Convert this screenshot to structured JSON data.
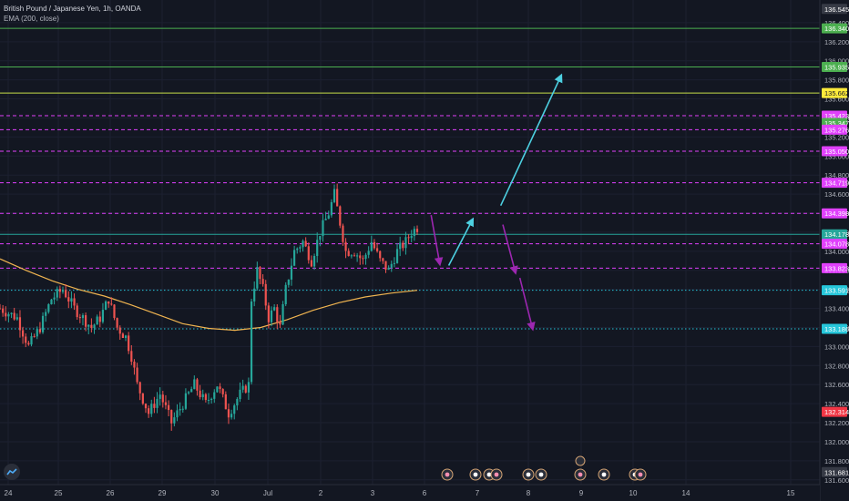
{
  "header": {
    "symbol_line": "British Pound / Japanese Yen, 1h, OANDA",
    "indicator_line": "EMA (200, close)"
  },
  "colors": {
    "background": "#131722",
    "up_candle": "#26a69a",
    "down_candle": "#ef5350",
    "ema": "#f0b450",
    "magenta_level": "#e040fb",
    "green_level": "#4caf50",
    "cyan_level": "#26c6da",
    "yellow_level": "#c8e04a",
    "arrow_cyan": "#4dd0e1",
    "arrow_purple": "#9c27b0"
  },
  "chart_data": {
    "type": "candlestick",
    "title": "",
    "instrument": "British Pound / Japanese Yen",
    "timeframe": "1h",
    "source": "OANDA",
    "indicator": "EMA (200, close)",
    "x_tick_labels": [
      "24",
      "25",
      "26",
      "29",
      "30",
      "Jul",
      "2",
      "3",
      "6",
      "7",
      "8",
      "9",
      "10",
      "14",
      "15"
    ],
    "y_tick_labels": [
      "136.400",
      "136.200",
      "136.000",
      "135.800",
      "135.600",
      "135.400",
      "135.200",
      "135.000",
      "134.800",
      "134.600",
      "134.400",
      "134.200",
      "134.000",
      "133.800",
      "133.600",
      "133.400",
      "133.200",
      "133.000",
      "132.800",
      "132.600",
      "132.400",
      "132.200",
      "132.000",
      "131.800",
      "131.600"
    ],
    "ylim": [
      131.55,
      136.6
    ],
    "current_price": 134.178,
    "horizontal_levels": [
      {
        "price": 136.34,
        "label": "136.340",
        "style": "solid",
        "color": "#4caf50",
        "badge": "#4caf50"
      },
      {
        "price": 135.935,
        "label": "135.935",
        "style": "solid",
        "color": "#4caf50",
        "badge": "#4caf50"
      },
      {
        "price": 135.662,
        "label": "135.662",
        "style": "solid",
        "color": "#c8e04a",
        "badge": "#ffeb3b"
      },
      {
        "price": 135.423,
        "label": "135.423",
        "style": "dashed",
        "color": "#e040fb",
        "badge": "#e040fb"
      },
      {
        "price": 135.347,
        "label": "135.347",
        "style": "none",
        "color": "#4caf50",
        "badge": "#4caf50"
      },
      {
        "price": 135.276,
        "label": "135.276",
        "style": "dashed",
        "color": "#e040fb",
        "badge": "#e040fb"
      },
      {
        "price": 135.05,
        "label": "135.050",
        "style": "dashed",
        "color": "#e040fb",
        "badge": "#e040fb"
      },
      {
        "price": 134.719,
        "label": "134.719",
        "style": "dashed",
        "color": "#e040fb",
        "badge": "#e040fb"
      },
      {
        "price": 134.398,
        "label": "134.398",
        "style": "dashed",
        "color": "#e040fb",
        "badge": "#e040fb"
      },
      {
        "price": 134.178,
        "label": "134.178",
        "style": "solid",
        "color": "#26a69a",
        "badge": "#26a69a"
      },
      {
        "price": 134.078,
        "label": "134.078",
        "style": "dashed",
        "color": "#e040fb",
        "badge": "#e040fb"
      },
      {
        "price": 133.823,
        "label": "133.823",
        "style": "dashed",
        "color": "#e040fb",
        "badge": "#e040fb"
      },
      {
        "price": 133.591,
        "label": "133.591",
        "style": "dotted",
        "color": "#26c6da",
        "badge": "#26c6da"
      },
      {
        "price": 133.186,
        "label": "133.186",
        "style": "dotted",
        "color": "#26c6da",
        "badge": "#26c6da"
      }
    ],
    "axis_badges": [
      {
        "price": 136.545,
        "label": "136.545",
        "color": "#363a45"
      },
      {
        "price": 132.314,
        "label": "132.314",
        "color": "#f23645"
      },
      {
        "price": 131.681,
        "label": "131.681",
        "color": "#363a45"
      }
    ],
    "close_path": [
      [
        0,
        133.4
      ],
      [
        6,
        133.3
      ],
      [
        10,
        133.0
      ],
      [
        14,
        133.2
      ],
      [
        18,
        133.5
      ],
      [
        22,
        133.6
      ],
      [
        26,
        133.4
      ],
      [
        29,
        133.3
      ],
      [
        32,
        133.2
      ],
      [
        35,
        133.3
      ],
      [
        38,
        133.5
      ],
      [
        41,
        133.2
      ],
      [
        44,
        133.1
      ],
      [
        46,
        132.9
      ],
      [
        48,
        132.6
      ],
      [
        52,
        132.3
      ],
      [
        56,
        132.5
      ],
      [
        60,
        132.2
      ],
      [
        64,
        132.4
      ],
      [
        68,
        132.6
      ],
      [
        72,
        132.4
      ],
      [
        76,
        132.6
      ],
      [
        80,
        132.3
      ],
      [
        84,
        132.5
      ],
      [
        87,
        132.6
      ],
      [
        88,
        133.5
      ],
      [
        90,
        133.8
      ],
      [
        92,
        133.6
      ],
      [
        94,
        133.3
      ],
      [
        96,
        133.4
      ],
      [
        98,
        133.2
      ],
      [
        100,
        133.6
      ],
      [
        103,
        134.0
      ],
      [
        106,
        134.1
      ],
      [
        109,
        133.9
      ],
      [
        112,
        134.2
      ],
      [
        115,
        134.4
      ],
      [
        117,
        134.6
      ],
      [
        119,
        134.3
      ],
      [
        121,
        134.0
      ],
      [
        124,
        134.0
      ],
      [
        127,
        133.9
      ],
      [
        130,
        134.1
      ],
      [
        133,
        133.9
      ],
      [
        136,
        133.8
      ],
      [
        139,
        134.0
      ],
      [
        142,
        134.1
      ],
      [
        144,
        134.2
      ],
      [
        146,
        134.25
      ]
    ],
    "ema_values": [
      133.92,
      133.8,
      133.69,
      133.6,
      133.53,
      133.44,
      133.34,
      133.24,
      133.19,
      133.17,
      133.2,
      133.28,
      133.38,
      133.46,
      133.52,
      133.56,
      133.59
    ],
    "arrows": [
      {
        "color": "cyan",
        "from": [
          "Jul 6 11:00",
          133.85
        ],
        "to": [
          "Jul 6 22:00",
          134.34
        ]
      },
      {
        "color": "cyan",
        "from": [
          "Jul 7 11:00",
          134.48
        ],
        "to": [
          "Jul 8 15:00",
          135.85
        ]
      },
      {
        "color": "purple",
        "from": [
          "Jul 6 03:00",
          134.38
        ],
        "to": [
          "Jul 6 07:00",
          133.86
        ]
      },
      {
        "color": "purple",
        "from": [
          "Jul 7 12:00",
          134.28
        ],
        "to": [
          "Jul 7 18:00",
          133.77
        ]
      },
      {
        "color": "purple",
        "from": [
          "Jul 7 20:00",
          133.72
        ],
        "to": [
          "Jul 8 02:00",
          133.18
        ]
      }
    ],
    "event_icon_dates": [
      "6",
      "7",
      "7",
      "8",
      "8",
      "9",
      "9",
      "9",
      "10"
    ]
  }
}
